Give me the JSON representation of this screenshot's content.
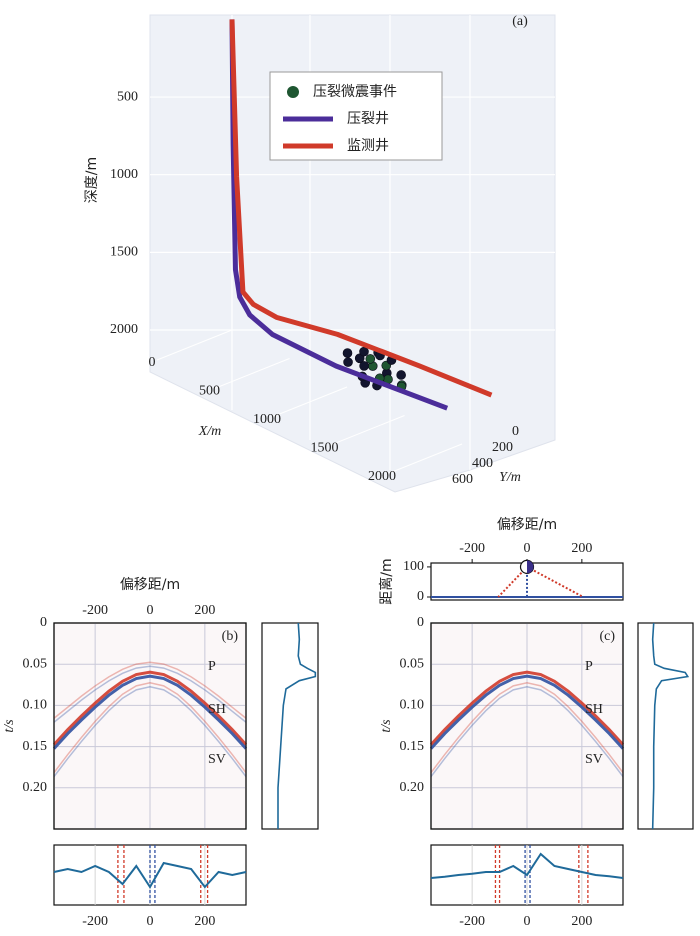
{
  "chart_data": [
    {
      "type": "well3d",
      "panel_label": "(a)",
      "zlabel": "深度/m",
      "xlabel": "X/m",
      "ylabel": "Y/m",
      "zticks": [
        500,
        1000,
        1500,
        2000
      ],
      "xticks": [
        0,
        500,
        1000,
        1500,
        2000
      ],
      "yticks": [
        0,
        200,
        400,
        600
      ],
      "series": [
        {
          "name": "压裂微震事件",
          "type": "scatter",
          "color": "#1e5631",
          "x": [
            1050,
            980,
            1120,
            1200,
            900,
            1010,
            1150,
            1080,
            940,
            1250,
            1000,
            1100,
            1180,
            960,
            1070,
            1300,
            870,
            1130,
            1020,
            1210
          ],
          "y": [
            -200,
            -150,
            -260,
            -180,
            -120,
            -300,
            -220,
            -90,
            -240,
            -260,
            -170,
            -330,
            -120,
            -200,
            -250,
            -200,
            -160,
            -150,
            -210,
            -300
          ],
          "z": [
            1950,
            1900,
            2000,
            1970,
            1880,
            1930,
            1920,
            1990,
            2010,
            2030,
            1860,
            1960,
            1940,
            2050,
            1900,
            1990,
            1970,
            2020,
            1920,
            2000
          ]
        },
        {
          "name": "压裂井",
          "type": "line",
          "color": "#4b2d9a",
          "x": [
            0,
            10,
            30,
            50,
            120,
            300,
            800,
            1680
          ],
          "y": [
            0,
            0,
            0,
            -20,
            -40,
            -60,
            -120,
            -220
          ],
          "z": [
            0,
            800,
            1600,
            1780,
            1880,
            1950,
            2000,
            2000
          ]
        },
        {
          "name": "监测井",
          "type": "line",
          "color": "#d03a2a",
          "x": [
            0,
            40,
            95,
            150,
            300,
            700,
            1300,
            1830
          ],
          "y": [
            0,
            0,
            0,
            -40,
            -100,
            -250,
            -380,
            -490
          ],
          "z": [
            0,
            1000,
            1720,
            1800,
            1860,
            1900,
            1950,
            2000
          ]
        }
      ]
    },
    {
      "type": "gather",
      "panel_label": "(b)",
      "xlabel": "偏移距/m",
      "ylabel": "t/s",
      "xlim": [
        -350,
        350
      ],
      "ylim": [
        0,
        0.25
      ],
      "y_inverted": true,
      "xticks": [
        -200,
        0,
        200
      ],
      "show_xtick_labels": true,
      "yticks": [
        0,
        0.05,
        {
          "value": 0.1,
          "label": "0.10"
        },
        0.15,
        {
          "value": 0.2,
          "label": "0.20"
        }
      ],
      "grid": true,
      "colors": [
        "#d03a2a",
        "#3050a0"
      ],
      "annotations": [
        "P",
        "SH",
        "SV"
      ],
      "events": [
        {
          "style": "faint",
          "x": [
            -350,
            -300,
            -250,
            -200,
            -150,
            -100,
            -50,
            0,
            50,
            100,
            150,
            200,
            250,
            300,
            350
          ],
          "t": [
            0.118,
            0.1047,
            0.0912,
            0.0788,
            0.0678,
            0.0586,
            0.0523,
            0.05,
            0.0523,
            0.0586,
            0.0678,
            0.0788,
            0.0912,
            0.1047,
            0.118
          ]
        },
        {
          "style": "strong",
          "x": [
            -350,
            -300,
            -250,
            -200,
            -150,
            -100,
            -50,
            0,
            50,
            100,
            150,
            200,
            250,
            300,
            350
          ],
          "t": [
            0.15,
            0.1318,
            0.1153,
            0.0997,
            0.0852,
            0.0732,
            0.065,
            0.062,
            0.065,
            0.0732,
            0.0852,
            0.0997,
            0.1153,
            0.1318,
            0.15
          ]
        },
        {
          "style": "faint",
          "x": [
            -350,
            -300,
            -250,
            -200,
            -150,
            -100,
            -50,
            0,
            50,
            100,
            150,
            200,
            250,
            300,
            350
          ],
          "t": [
            0.184,
            0.1621,
            0.1414,
            0.1218,
            0.104,
            0.0889,
            0.0787,
            0.075,
            0.0787,
            0.0889,
            0.104,
            0.1218,
            0.1414,
            0.1621,
            0.184
          ]
        }
      ]
    },
    {
      "type": "line",
      "orientation": "vertical",
      "color": "#1f6a9a",
      "xlim": [
        0,
        1.05
      ],
      "ylim": [
        0,
        0.25
      ],
      "y_inverted": true,
      "x": [
        0,
        0.02,
        0.04,
        0.05,
        0.055,
        0.06,
        0.065,
        0.07,
        0.08,
        0.1,
        0.15,
        0.2,
        0.25
      ],
      "values": [
        0.68,
        0.7,
        0.68,
        0.72,
        0.85,
        1.0,
        1.0,
        0.7,
        0.45,
        0.4,
        0.35,
        0.3,
        0.3
      ]
    },
    {
      "type": "line",
      "orientation": "horizontal",
      "color": "#1f6a9a",
      "xlim": [
        -350,
        350
      ],
      "ylim": [
        0,
        1
      ],
      "xticks": [
        -200,
        0,
        200
      ],
      "x": [
        -350,
        -300,
        -250,
        -200,
        -150,
        -100,
        -50,
        0,
        50,
        100,
        150,
        200,
        250,
        300,
        350
      ],
      "values": [
        0.55,
        0.6,
        0.55,
        0.65,
        0.55,
        0.35,
        0.65,
        0.3,
        0.7,
        0.65,
        0.6,
        0.3,
        0.55,
        0.5,
        0.55
      ],
      "vlines": [
        {
          "x": -117,
          "color": "#d03a2a"
        },
        {
          "x": -95,
          "color": "#d03a2a"
        },
        {
          "x": 0,
          "color": "#3050a0"
        },
        {
          "x": 18,
          "color": "#3050a0"
        },
        {
          "x": 185,
          "color": "#d03a2a"
        },
        {
          "x": 210,
          "color": "#d03a2a"
        }
      ]
    },
    {
      "type": "geometry",
      "xlabel": "偏移距/m",
      "ylabel": "距离/m",
      "xlim": [
        -350,
        350
      ],
      "ylim": [
        -10,
        113
      ],
      "xticks": [
        -200,
        0,
        200
      ],
      "yticks": [
        0,
        100
      ],
      "baseline_color": "#3050a0",
      "source": {
        "x": 0,
        "y": 100
      },
      "rays": [
        {
          "x": [
            0,
            -105
          ],
          "y": [
            100,
            0
          ],
          "color": "#d03a2a"
        },
        {
          "x": [
            0,
            205
          ],
          "y": [
            100,
            0
          ],
          "color": "#d03a2a"
        },
        {
          "x": [
            0,
            0
          ],
          "y": [
            100,
            0
          ],
          "color": "#3050a0"
        }
      ]
    },
    {
      "type": "gather",
      "panel_label": "(c)",
      "ylabel": "t/s",
      "xlim": [
        -350,
        350
      ],
      "ylim": [
        0,
        0.25
      ],
      "y_inverted": true,
      "xticks": [
        -200,
        0,
        200
      ],
      "show_xtick_labels": false,
      "yticks": [
        0,
        0.05,
        {
          "value": 0.1,
          "label": "0.10"
        },
        0.15,
        {
          "value": 0.2,
          "label": "0.20"
        }
      ],
      "grid": true,
      "colors": [
        "#d03a2a",
        "#3050a0"
      ],
      "annotations": [
        "P",
        "SH",
        "SV"
      ],
      "events": [
        {
          "style": "strong",
          "x": [
            -350,
            -300,
            -250,
            -200,
            -150,
            -100,
            -50,
            0,
            50,
            100,
            150,
            200,
            250,
            300,
            350
          ],
          "t": [
            0.15,
            0.1318,
            0.1153,
            0.0997,
            0.0852,
            0.0732,
            0.065,
            0.062,
            0.065,
            0.0732,
            0.0852,
            0.0997,
            0.1153,
            0.1318,
            0.15
          ]
        },
        {
          "style": "faint",
          "x": [
            -350,
            -300,
            -250,
            -200,
            -150,
            -100,
            -50,
            0,
            50,
            100,
            150,
            200,
            250,
            300,
            350
          ],
          "t": [
            0.184,
            0.1621,
            0.1414,
            0.1218,
            0.104,
            0.0889,
            0.0787,
            0.075,
            0.0787,
            0.0889,
            0.104,
            0.1218,
            0.1414,
            0.1621,
            0.184
          ]
        }
      ]
    },
    {
      "type": "line",
      "orientation": "vertical",
      "color": "#1f6a9a",
      "xlim": [
        0,
        1.05
      ],
      "ylim": [
        0,
        0.25
      ],
      "y_inverted": true,
      "x": [
        0,
        0.02,
        0.04,
        0.05,
        0.055,
        0.06,
        0.065,
        0.07,
        0.08,
        0.1,
        0.15,
        0.2,
        0.25
      ],
      "values": [
        0.3,
        0.28,
        0.3,
        0.32,
        0.5,
        0.9,
        0.95,
        0.45,
        0.35,
        0.32,
        0.3,
        0.3,
        0.28
      ]
    },
    {
      "type": "line",
      "orientation": "horizontal",
      "color": "#1f6a9a",
      "xlim": [
        -350,
        350
      ],
      "ylim": [
        0,
        1
      ],
      "xticks": [
        -200,
        0,
        200
      ],
      "x": [
        -350,
        -300,
        -250,
        -200,
        -150,
        -100,
        -50,
        0,
        50,
        100,
        150,
        200,
        250,
        300,
        350
      ],
      "values": [
        0.45,
        0.47,
        0.5,
        0.52,
        0.55,
        0.55,
        0.65,
        0.5,
        0.85,
        0.65,
        0.6,
        0.55,
        0.5,
        0.48,
        0.45
      ],
      "vlines": [
        {
          "x": -115,
          "color": "#d03a2a"
        },
        {
          "x": -100,
          "color": "#d03a2a"
        },
        {
          "x": -7,
          "color": "#3050a0"
        },
        {
          "x": 11,
          "color": "#3050a0"
        },
        {
          "x": 189,
          "color": "#d03a2a"
        },
        {
          "x": 222,
          "color": "#d03a2a"
        }
      ]
    }
  ]
}
